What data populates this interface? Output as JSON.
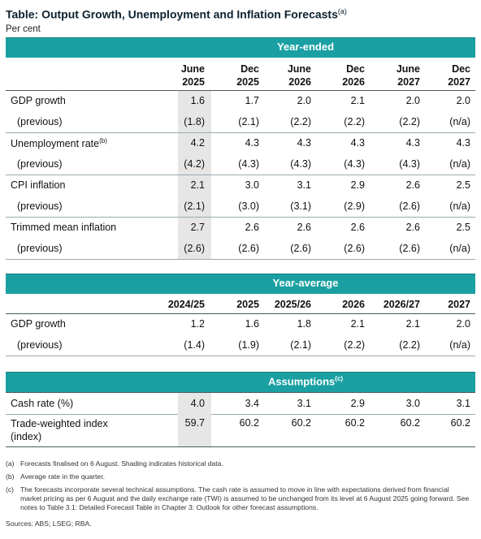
{
  "title": "Table: Output Growth, Unemployment and Inflation Forecasts",
  "title_note": "(a)",
  "subtitle": "Per cent",
  "section1": {
    "band": "Year-ended",
    "headers": [
      [
        "June",
        "2025"
      ],
      [
        "Dec",
        "2025"
      ],
      [
        "June",
        "2026"
      ],
      [
        "Dec",
        "2026"
      ],
      [
        "June",
        "2027"
      ],
      [
        "Dec",
        "2027"
      ]
    ],
    "rows": [
      {
        "label": "GDP growth",
        "note": "",
        "indent": false,
        "values": [
          "1.6",
          "1.7",
          "2.0",
          "2.1",
          "2.0",
          "2.0"
        ]
      },
      {
        "label": "(previous)",
        "note": "",
        "indent": true,
        "values": [
          "(1.8)",
          "(2.1)",
          "(2.2)",
          "(2.2)",
          "(2.2)",
          "(n/a)"
        ]
      },
      {
        "label": "Unemployment rate",
        "note": "(b)",
        "indent": false,
        "values": [
          "4.2",
          "4.3",
          "4.3",
          "4.3",
          "4.3",
          "4.3"
        ]
      },
      {
        "label": "(previous)",
        "note": "",
        "indent": true,
        "values": [
          "(4.2)",
          "(4.3)",
          "(4.3)",
          "(4.3)",
          "(4.3)",
          "(n/a)"
        ]
      },
      {
        "label": "CPI inflation",
        "note": "",
        "indent": false,
        "values": [
          "2.1",
          "3.0",
          "3.1",
          "2.9",
          "2.6",
          "2.5"
        ]
      },
      {
        "label": "(previous)",
        "note": "",
        "indent": true,
        "values": [
          "(2.1)",
          "(3.0)",
          "(3.1)",
          "(2.9)",
          "(2.6)",
          "(n/a)"
        ]
      },
      {
        "label": "Trimmed mean inflation",
        "note": "",
        "indent": false,
        "values": [
          "2.7",
          "2.6",
          "2.6",
          "2.6",
          "2.6",
          "2.5"
        ]
      },
      {
        "label": "(previous)",
        "note": "",
        "indent": true,
        "values": [
          "(2.6)",
          "(2.6)",
          "(2.6)",
          "(2.6)",
          "(2.6)",
          "(n/a)"
        ]
      }
    ]
  },
  "section2": {
    "band": "Year-average",
    "headers": [
      "2024/25",
      "2025",
      "2025/26",
      "2026",
      "2026/27",
      "2027"
    ],
    "rows": [
      {
        "label": "GDP growth",
        "indent": false,
        "values": [
          "1.2",
          "1.6",
          "1.8",
          "2.1",
          "2.1",
          "2.0"
        ]
      },
      {
        "label": "(previous)",
        "indent": true,
        "values": [
          "(1.4)",
          "(1.9)",
          "(2.1)",
          "(2.2)",
          "(2.2)",
          "(n/a)"
        ]
      }
    ]
  },
  "section3": {
    "band": "Assumptions",
    "band_note": "(c)",
    "rows": [
      {
        "label": "Cash rate (%)",
        "values": [
          "4.0",
          "3.4",
          "3.1",
          "2.9",
          "3.0",
          "3.1"
        ]
      },
      {
        "label": "Trade-weighted index",
        "label2": "(index)",
        "values": [
          "59.7",
          "60.2",
          "60.2",
          "60.2",
          "60.2",
          "60.2"
        ]
      }
    ]
  },
  "notes": [
    {
      "mark": "(a)",
      "text": "Forecasts finalised on 6 August. Shading indicates historical data."
    },
    {
      "mark": "(b)",
      "text": "Average rate in the quarter."
    },
    {
      "mark": "(c)",
      "text": "The forecasts incorporate several technical assumptions. The cash rate is assumed to move in line with expectations derived from financial market pricing as per 6 August and the daily exchange rate (TWI) is assumed to be unchanged from its level at 6 August 2025 going forward. See notes to Table 3.1: Detailed Forecast Table in Chapter 3: Outlook for other forecast assumptions."
    }
  ],
  "sources": "Sources: ABS; LSEG; RBA."
}
